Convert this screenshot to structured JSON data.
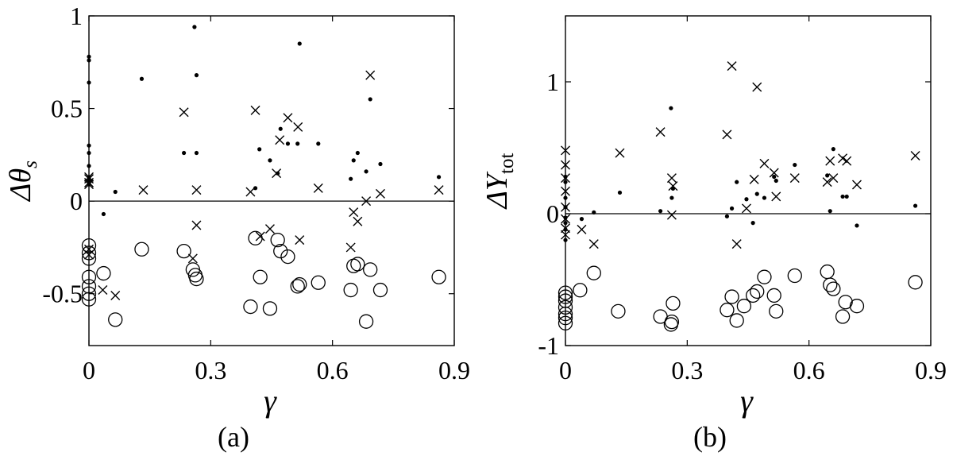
{
  "chart_data": [
    {
      "type": "scatter",
      "panel_label": "(a)",
      "xlabel": "γ",
      "ylabel_prefix": "Δθ",
      "ylabel_sub": "s",
      "xlim": [
        0,
        0.9
      ],
      "ylim": [
        -0.78,
        1.0
      ],
      "xticks": [
        {
          "value": 0,
          "label": "0"
        },
        {
          "value": 0.3,
          "label": "0.3"
        },
        {
          "value": 0.6,
          "label": "0.6"
        },
        {
          "value": 0.9,
          "label": "0.9"
        }
      ],
      "yticks": [
        {
          "value": -0.5,
          "label": "-0.5"
        },
        {
          "value": 0,
          "label": "0"
        },
        {
          "value": 0.5,
          "label": "0.5"
        },
        {
          "value": 1,
          "label": "1"
        }
      ],
      "reference_line_y": 0,
      "series": [
        {
          "marker": "dot",
          "points": [
            [
              0.0,
              0.78
            ],
            [
              0.0,
              0.76
            ],
            [
              0.0,
              0.64
            ],
            [
              0.0,
              0.3
            ],
            [
              0.0,
              0.26
            ],
            [
              0.0,
              0.19
            ],
            [
              0.0,
              0.13
            ],
            [
              0.0,
              0.11
            ],
            [
              0.0,
              0.09
            ],
            [
              0.036,
              -0.07
            ],
            [
              0.065,
              0.05
            ],
            [
              0.13,
              0.66
            ],
            [
              0.234,
              0.26
            ],
            [
              0.26,
              0.94
            ],
            [
              0.265,
              0.68
            ],
            [
              0.265,
              0.26
            ],
            [
              0.41,
              0.07
            ],
            [
              0.42,
              0.28
            ],
            [
              0.446,
              0.22
            ],
            [
              0.465,
              0.15
            ],
            [
              0.472,
              0.39
            ],
            [
              0.49,
              0.31
            ],
            [
              0.514,
              0.31
            ],
            [
              0.519,
              0.85
            ],
            [
              0.565,
              0.31
            ],
            [
              0.645,
              0.12
            ],
            [
              0.652,
              0.22
            ],
            [
              0.662,
              0.26
            ],
            [
              0.683,
              0.16
            ],
            [
              0.693,
              0.55
            ],
            [
              0.718,
              0.2
            ],
            [
              0.862,
              0.13
            ]
          ]
        },
        {
          "marker": "cross",
          "points": [
            [
              0.0,
              0.13
            ],
            [
              0.0,
              0.12
            ],
            [
              0.0,
              0.1
            ],
            [
              0.0,
              0.09
            ],
            [
              0.0,
              -0.26
            ],
            [
              0.0,
              -0.29
            ],
            [
              0.034,
              -0.48
            ],
            [
              0.065,
              -0.51
            ],
            [
              0.134,
              0.06
            ],
            [
              0.234,
              0.48
            ],
            [
              0.256,
              -0.31
            ],
            [
              0.265,
              0.06
            ],
            [
              0.265,
              -0.13
            ],
            [
              0.398,
              0.05
            ],
            [
              0.41,
              0.49
            ],
            [
              0.422,
              -0.19
            ],
            [
              0.446,
              -0.15
            ],
            [
              0.462,
              0.15
            ],
            [
              0.47,
              0.33
            ],
            [
              0.49,
              0.45
            ],
            [
              0.515,
              0.4
            ],
            [
              0.519,
              -0.21
            ],
            [
              0.565,
              0.07
            ],
            [
              0.645,
              -0.25
            ],
            [
              0.652,
              -0.06
            ],
            [
              0.662,
              -0.11
            ],
            [
              0.683,
              0.0
            ],
            [
              0.693,
              0.68
            ],
            [
              0.718,
              0.04
            ],
            [
              0.862,
              0.06
            ]
          ]
        },
        {
          "marker": "circle",
          "points": [
            [
              0.0,
              -0.24
            ],
            [
              0.0,
              -0.28
            ],
            [
              0.0,
              -0.31
            ],
            [
              0.0,
              -0.41
            ],
            [
              0.0,
              -0.46
            ],
            [
              0.0,
              -0.5
            ],
            [
              0.0,
              -0.53
            ],
            [
              0.036,
              -0.39
            ],
            [
              0.065,
              -0.64
            ],
            [
              0.13,
              -0.26
            ],
            [
              0.234,
              -0.27
            ],
            [
              0.256,
              -0.37
            ],
            [
              0.262,
              -0.4
            ],
            [
              0.265,
              -0.42
            ],
            [
              0.398,
              -0.57
            ],
            [
              0.41,
              -0.2
            ],
            [
              0.422,
              -0.41
            ],
            [
              0.446,
              -0.58
            ],
            [
              0.465,
              -0.21
            ],
            [
              0.472,
              -0.27
            ],
            [
              0.49,
              -0.3
            ],
            [
              0.514,
              -0.46
            ],
            [
              0.519,
              -0.45
            ],
            [
              0.565,
              -0.44
            ],
            [
              0.645,
              -0.48
            ],
            [
              0.652,
              -0.35
            ],
            [
              0.662,
              -0.34
            ],
            [
              0.683,
              -0.65
            ],
            [
              0.693,
              -0.37
            ],
            [
              0.718,
              -0.48
            ],
            [
              0.862,
              -0.41
            ]
          ]
        }
      ]
    },
    {
      "type": "scatter",
      "panel_label": "(b)",
      "xlabel": "γ",
      "ylabel_prefix": "ΔY",
      "ylabel_sub": "tot",
      "xlim": [
        0,
        0.9
      ],
      "ylim": [
        -1.0,
        1.5
      ],
      "xticks": [
        {
          "value": 0,
          "label": "0"
        },
        {
          "value": 0.3,
          "label": "0.3"
        },
        {
          "value": 0.6,
          "label": "0.6"
        },
        {
          "value": 0.9,
          "label": "0.9"
        }
      ],
      "yticks": [
        {
          "value": -1,
          "label": "-1"
        },
        {
          "value": 0,
          "label": "0"
        },
        {
          "value": 1,
          "label": "1"
        }
      ],
      "reference_line_y": 0,
      "series": [
        {
          "marker": "dot",
          "points": [
            [
              0.0,
              0.28
            ],
            [
              0.0,
              0.24
            ],
            [
              0.0,
              0.12
            ],
            [
              0.0,
              0.05
            ],
            [
              0.0,
              -0.03
            ],
            [
              0.0,
              -0.07
            ],
            [
              0.0,
              -0.12
            ],
            [
              0.0,
              -0.2
            ],
            [
              0.04,
              -0.04
            ],
            [
              0.07,
              0.01
            ],
            [
              0.134,
              0.16
            ],
            [
              0.234,
              0.02
            ],
            [
              0.26,
              0.8
            ],
            [
              0.262,
              0.12
            ],
            [
              0.265,
              0.19
            ],
            [
              0.398,
              -0.02
            ],
            [
              0.41,
              0.04
            ],
            [
              0.422,
              0.24
            ],
            [
              0.446,
              0.11
            ],
            [
              0.462,
              -0.07
            ],
            [
              0.472,
              0.15
            ],
            [
              0.49,
              0.12
            ],
            [
              0.514,
              0.28
            ],
            [
              0.519,
              0.25
            ],
            [
              0.565,
              0.37
            ],
            [
              0.645,
              0.29
            ],
            [
              0.652,
              0.02
            ],
            [
              0.66,
              0.49
            ],
            [
              0.683,
              0.13
            ],
            [
              0.693,
              0.13
            ],
            [
              0.718,
              -0.09
            ],
            [
              0.862,
              0.06
            ]
          ]
        },
        {
          "marker": "cross",
          "points": [
            [
              0.0,
              0.48
            ],
            [
              0.0,
              0.37
            ],
            [
              0.0,
              0.27
            ],
            [
              0.0,
              0.17
            ],
            [
              0.0,
              0.05
            ],
            [
              0.0,
              -0.04
            ],
            [
              0.0,
              -0.11
            ],
            [
              0.0,
              -0.16
            ],
            [
              0.04,
              -0.12
            ],
            [
              0.07,
              -0.23
            ],
            [
              0.134,
              0.46
            ],
            [
              0.234,
              0.62
            ],
            [
              0.262,
              0.27
            ],
            [
              0.265,
              0.21
            ],
            [
              0.262,
              -0.01
            ],
            [
              0.398,
              0.6
            ],
            [
              0.41,
              1.12
            ],
            [
              0.422,
              -0.23
            ],
            [
              0.446,
              0.04
            ],
            [
              0.465,
              0.26
            ],
            [
              0.472,
              0.96
            ],
            [
              0.49,
              0.38
            ],
            [
              0.514,
              0.31
            ],
            [
              0.519,
              0.13
            ],
            [
              0.565,
              0.27
            ],
            [
              0.645,
              0.24
            ],
            [
              0.652,
              0.4
            ],
            [
              0.66,
              0.27
            ],
            [
              0.683,
              0.42
            ],
            [
              0.693,
              0.4
            ],
            [
              0.718,
              0.22
            ],
            [
              0.862,
              0.44
            ]
          ]
        },
        {
          "marker": "circle",
          "points": [
            [
              0.0,
              -0.6
            ],
            [
              0.0,
              -0.63
            ],
            [
              0.0,
              -0.66
            ],
            [
              0.0,
              -0.71
            ],
            [
              0.0,
              -0.76
            ],
            [
              0.0,
              -0.79
            ],
            [
              0.0,
              -0.83
            ],
            [
              0.036,
              -0.58
            ],
            [
              0.07,
              -0.45
            ],
            [
              0.13,
              -0.74
            ],
            [
              0.234,
              -0.78
            ],
            [
              0.26,
              -0.84
            ],
            [
              0.262,
              -0.82
            ],
            [
              0.265,
              -0.68
            ],
            [
              0.398,
              -0.73
            ],
            [
              0.41,
              -0.63
            ],
            [
              0.422,
              -0.81
            ],
            [
              0.44,
              -0.7
            ],
            [
              0.462,
              -0.62
            ],
            [
              0.472,
              -0.59
            ],
            [
              0.49,
              -0.48
            ],
            [
              0.514,
              -0.62
            ],
            [
              0.519,
              -0.74
            ],
            [
              0.565,
              -0.47
            ],
            [
              0.645,
              -0.44
            ],
            [
              0.652,
              -0.54
            ],
            [
              0.66,
              -0.57
            ],
            [
              0.683,
              -0.78
            ],
            [
              0.69,
              -0.67
            ],
            [
              0.718,
              -0.7
            ],
            [
              0.862,
              -0.52
            ]
          ]
        }
      ]
    }
  ]
}
